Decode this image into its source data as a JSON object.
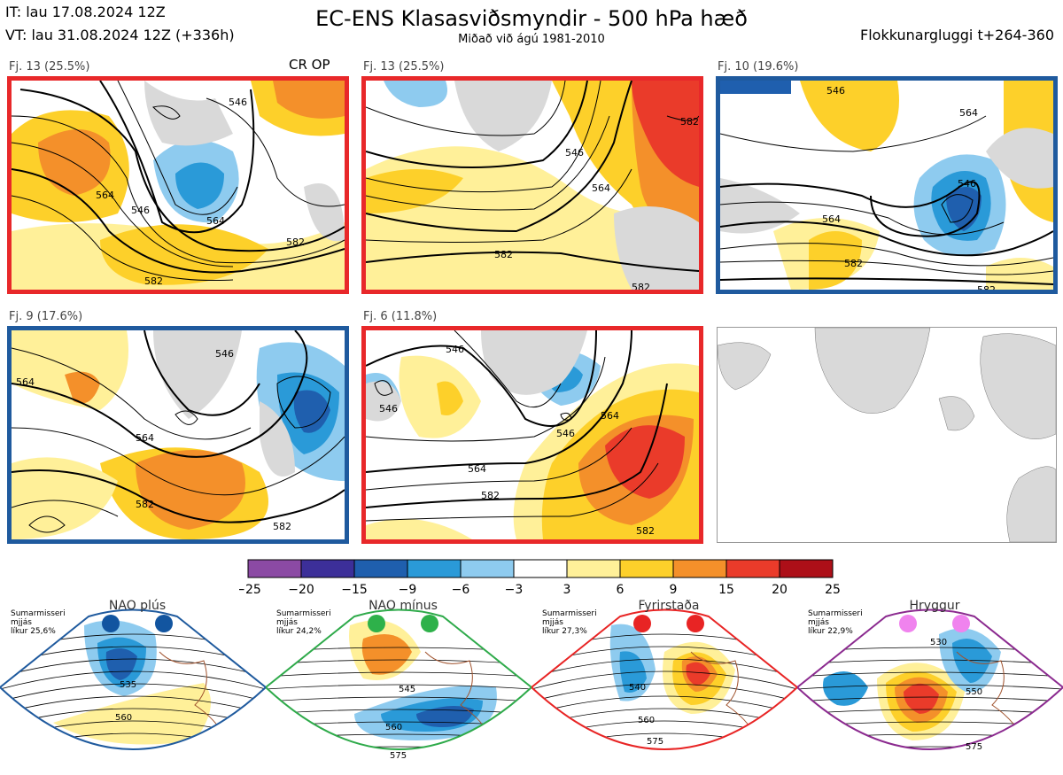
{
  "header": {
    "it": "IT: lau 17.08.2024 12Z",
    "vt": "VT: lau 31.08.2024 12Z  (+336h)",
    "title": "EC-ENS Klasasviðsmyndir - 500 hPa hæð",
    "subtitle": "Miðað við ágú 1981-2010",
    "window": "Flokkunargluggi t+264-360"
  },
  "colors": {
    "red_border": "#e8282a",
    "blue_border": "#1f5a9e",
    "land": "#d9d9d9"
  },
  "clusters": [
    {
      "label": "Fj. 13 (25.5%)",
      "extra": "CR OP",
      "border": "red",
      "contours": [
        "546",
        "564",
        "546",
        "564",
        "582",
        "582"
      ]
    },
    {
      "label": "Fj. 13 (25.5%)",
      "extra": "",
      "border": "red",
      "contours": [
        "546",
        "564",
        "582",
        "582",
        "582"
      ]
    },
    {
      "label": "Fj. 10 (19.6%)",
      "extra": "",
      "border": "blue",
      "contours": [
        "546",
        "564",
        "546",
        "564",
        "582",
        "582"
      ]
    },
    {
      "label": "Fj. 9 (17.6%)",
      "extra": "",
      "border": "blue",
      "contours": [
        "546",
        "564",
        "564",
        "582",
        "582"
      ]
    },
    {
      "label": "Fj. 6 (11.8%)",
      "extra": "",
      "border": "red",
      "contours": [
        "546",
        "546",
        "564",
        "546",
        "564",
        "582",
        "582"
      ]
    }
  ],
  "colorbar": {
    "ticks": [
      "−25",
      "−20",
      "−15",
      "−9",
      "−6",
      "−3",
      "3",
      "6",
      "9",
      "15",
      "20",
      "25"
    ],
    "colors": [
      "#8b4aa4",
      "#3c2f99",
      "#1f5fae",
      "#2a9ad8",
      "#8ecbef",
      "#ffffff",
      "#fff099",
      "#fdd02a",
      "#f4902a",
      "#ea3b2a",
      "#ad0f18"
    ]
  },
  "regimes": [
    {
      "name": "NAO plús",
      "info": "Sumarmisseri\nmjjás\nlíkur 25,6%",
      "dot_color": "#1255a0",
      "border": "#1f5a9e",
      "contours": [
        "535",
        "560"
      ]
    },
    {
      "name": "NAO mínus",
      "info": "Sumarmisseri\nmjjás\nlíkur 24,2%",
      "dot_color": "#2eb14a",
      "border": "#2eaa4a",
      "contours": [
        "545",
        "560",
        "575"
      ]
    },
    {
      "name": "Fyrirstaða",
      "info": "Sumarmisseri\nmjjás\nlíkur 27,3%",
      "dot_color": "#e82424",
      "border": "#e82424",
      "contours": [
        "540",
        "560",
        "575"
      ]
    },
    {
      "name": "Hryggur",
      "info": "Sumarmisseri\nmjjás\nlíkur 22,9%",
      "dot_color": "#f083ee",
      "border": "#8b2a8f",
      "contours": [
        "530",
        "550",
        "575"
      ]
    }
  ],
  "chart_data": {
    "type": "heatmap",
    "title": "EC-ENS Klasasviðsmyndir - 500 hPa hæð",
    "subtitle": "Miðað við ágú 1981-2010",
    "colorbar_levels": [
      -25,
      -20,
      -15,
      -9,
      -6,
      -3,
      3,
      6,
      9,
      15,
      20,
      25
    ],
    "contour_levels_dam": [
      546,
      564,
      582
    ],
    "clusters": [
      {
        "name": "Fj. 13",
        "probability_pct": 25.5
      },
      {
        "name": "Fj. 13",
        "probability_pct": 25.5
      },
      {
        "name": "Fj. 10",
        "probability_pct": 19.6
      },
      {
        "name": "Fj. 9",
        "probability_pct": 17.6
      },
      {
        "name": "Fj. 6",
        "probability_pct": 11.8
      }
    ],
    "regimes": [
      {
        "name": "NAO plús",
        "probability_pct": 25.6
      },
      {
        "name": "NAO mínus",
        "probability_pct": 24.2
      },
      {
        "name": "Fyrirstaða",
        "probability_pct": 27.3
      },
      {
        "name": "Hryggur",
        "probability_pct": 22.9
      }
    ]
  }
}
